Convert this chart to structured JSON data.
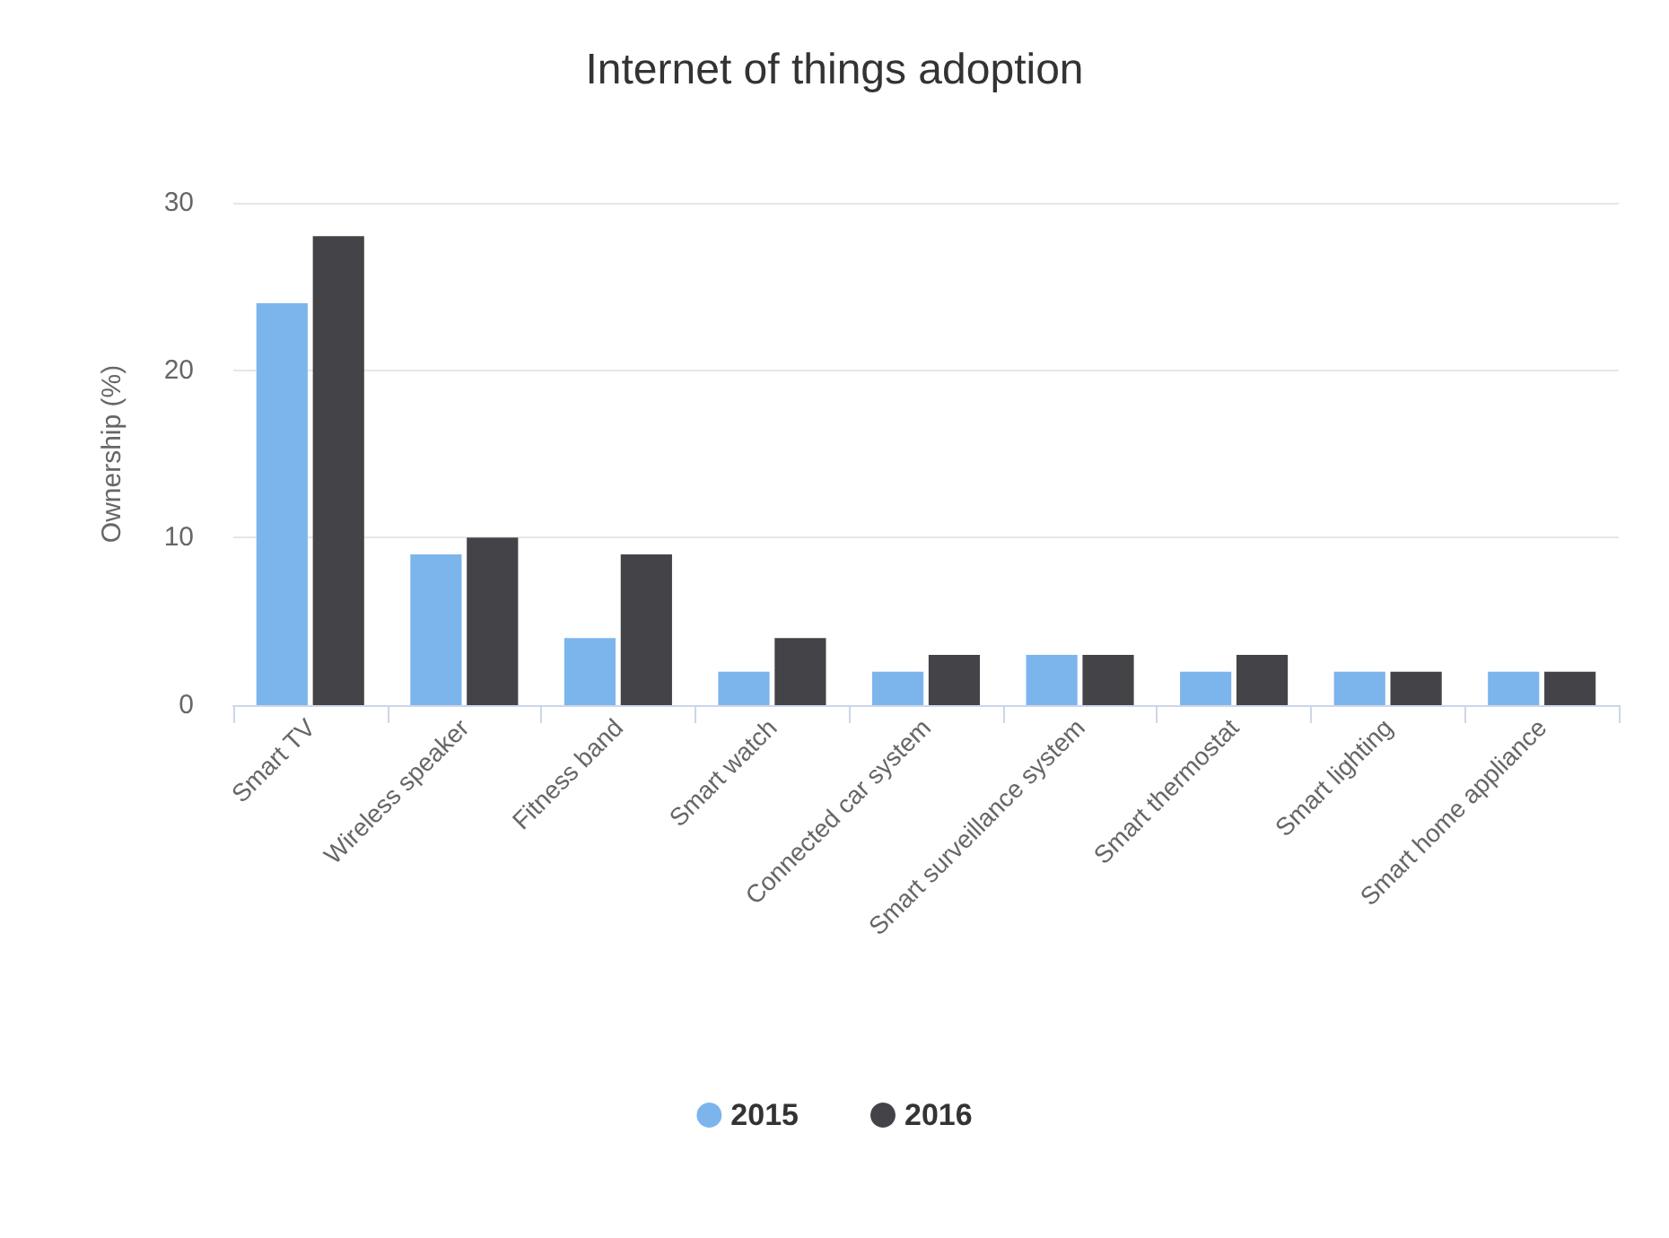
{
  "chart_data": {
    "type": "bar",
    "title": "Internet of things adoption",
    "ylabel": "Ownership (%)",
    "categories": [
      "Smart TV",
      "Wireless speaker",
      "Fitness band",
      "Smart watch",
      "Connected car system",
      "Smart surveillance system",
      "Smart thermostat",
      "Smart lighting",
      "Smart home appliance"
    ],
    "series": [
      {
        "name": "2015",
        "color": "#7cb5ec",
        "values": [
          24,
          9,
          4,
          2,
          2,
          3,
          2,
          2,
          2
        ]
      },
      {
        "name": "2016",
        "color": "#434348",
        "values": [
          28,
          10,
          9,
          4,
          3,
          3,
          3,
          2,
          2
        ]
      }
    ],
    "ylim": [
      0,
      30
    ],
    "yticks": [
      0,
      10,
      20,
      30
    ],
    "grid": "y",
    "legend": "bottom"
  }
}
